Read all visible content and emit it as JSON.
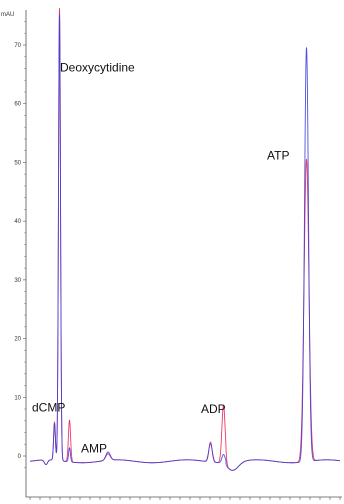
{
  "chart_data": {
    "type": "line",
    "ylabel": "mAU",
    "ylim": [
      -3,
      75
    ],
    "xlim": [
      0,
      31
    ],
    "yticks": [
      0,
      10,
      20,
      30,
      40,
      50,
      60,
      70
    ],
    "ytick_labels": [
      "0",
      "10",
      "20",
      "30",
      "40",
      "50",
      "60",
      "70"
    ],
    "xticks": [
      0,
      1,
      2,
      3,
      4,
      5,
      6,
      7,
      8,
      9,
      10,
      11,
      12,
      13,
      14,
      15,
      16,
      17,
      18,
      19,
      20,
      21,
      22,
      23,
      24,
      25,
      26,
      27,
      28,
      29,
      30,
      31
    ],
    "annotations": [
      {
        "text": "Deoxycytidine",
        "x": 3.0,
        "y": 65.5
      },
      {
        "text": "ATP",
        "x": 23.7,
        "y": 50.5
      },
      {
        "text": "ADP",
        "x": 17.1,
        "y": 7.3
      },
      {
        "text": "dCMP",
        "x": 0.2,
        "y": 7.6
      },
      {
        "text": "AMP",
        "x": 5.1,
        "y": 0.6
      }
    ],
    "series": [
      {
        "color": "#e8174a",
        "peaks": [
          {
            "x": 2.45,
            "h": 6.5,
            "w": 0.09
          },
          {
            "x": 2.95,
            "h": 77,
            "w": 0.1
          },
          {
            "x": 3.95,
            "h": 7.1,
            "w": 0.11
          },
          {
            "x": 7.8,
            "h": 1.1,
            "w": 0.22
          },
          {
            "x": 18.05,
            "h": 3.4,
            "w": 0.16
          },
          {
            "x": 19.35,
            "h": 9.8,
            "w": 0.16
          },
          {
            "x": 27.65,
            "h": 51.5,
            "w": 0.24
          }
        ]
      },
      {
        "color": "#3b3fd8",
        "peaks": [
          {
            "x": 2.45,
            "h": 6.2,
            "w": 0.09
          },
          {
            "x": 2.95,
            "h": 76,
            "w": 0.1
          },
          {
            "x": 3.95,
            "h": 2.4,
            "w": 0.09
          },
          {
            "x": 7.8,
            "h": 1.4,
            "w": 0.22
          },
          {
            "x": 18.05,
            "h": 3.1,
            "w": 0.18
          },
          {
            "x": 19.35,
            "h": 1.4,
            "w": 0.16
          },
          {
            "x": 27.65,
            "h": 70.5,
            "w": 0.2
          }
        ]
      }
    ]
  }
}
